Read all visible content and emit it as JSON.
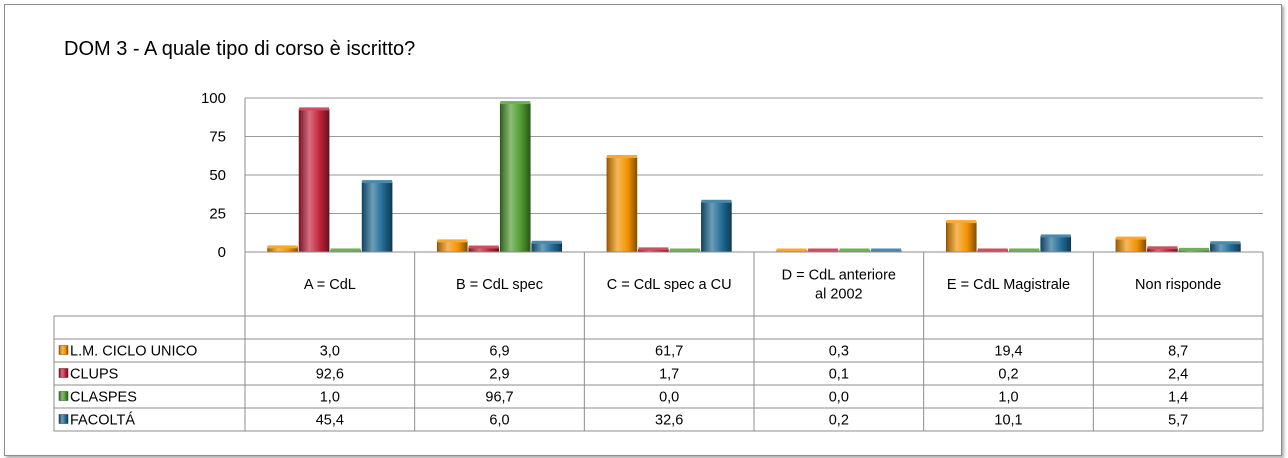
{
  "chart_data": {
    "type": "bar",
    "title": "DOM 3 - A quale tipo di corso è iscritto?",
    "categories": [
      "A = CdL",
      "B = CdL spec",
      "C = CdL spec a CU",
      "D = CdL anteriore al 2002",
      "E = CdL Magistrale",
      "Non risponde"
    ],
    "category_lines": [
      [
        "A = CdL"
      ],
      [
        "B = CdL spec"
      ],
      [
        "C = CdL spec a CU"
      ],
      [
        "D = CdL anteriore",
        "al 2002"
      ],
      [
        "E = CdL Magistrale"
      ],
      [
        "Non risponde"
      ]
    ],
    "series": [
      {
        "name": "L.M. CICLO UNICO",
        "color": "#F39200",
        "values": [
          3.0,
          6.9,
          61.7,
          0.3,
          19.4,
          8.7
        ],
        "labels": [
          "3,0",
          "6,9",
          "61,7",
          "0,3",
          "19,4",
          "8,7"
        ]
      },
      {
        "name": "CLUPS",
        "color": "#C0213A",
        "values": [
          92.6,
          2.9,
          1.7,
          0.1,
          0.2,
          2.4
        ],
        "labels": [
          "92,6",
          "2,9",
          "1,7",
          "0,1",
          "0,2",
          "2,4"
        ]
      },
      {
        "name": "CLASPES",
        "color": "#4E9A2F",
        "values": [
          1.0,
          96.7,
          0.0,
          0.0,
          1.0,
          1.4
        ],
        "labels": [
          "1,0",
          "96,7",
          "0,0",
          "0,0",
          "1,0",
          "1,4"
        ]
      },
      {
        "name": "FACOLTÁ",
        "color": "#1F6A94",
        "values": [
          45.4,
          6.0,
          32.6,
          0.2,
          10.1,
          5.7
        ],
        "labels": [
          "45,4",
          "6,0",
          "32,6",
          "0,2",
          "10,1",
          "5,7"
        ]
      }
    ],
    "ylim": [
      0,
      100
    ],
    "yticks": [
      0,
      25,
      50,
      75,
      100
    ],
    "grid": true,
    "legend": "data-table"
  }
}
